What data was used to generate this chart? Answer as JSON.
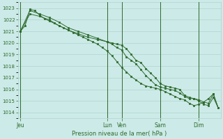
{
  "background_color": "#cceae7",
  "grid_color": "#b0d4d0",
  "line_color": "#2d6a2d",
  "marker_color": "#2d6a2d",
  "xlabel": "Pression niveau de la mer( hPa )",
  "ylim": [
    1013.5,
    1023.5
  ],
  "yticks": [
    1014,
    1015,
    1016,
    1017,
    1018,
    1019,
    1020,
    1021,
    1022,
    1023
  ],
  "x_day_labels": [
    "Jeu",
    "Lun",
    "Ven",
    "Sam",
    "Dim"
  ],
  "x_day_positions": [
    0,
    18,
    21,
    29,
    37
  ],
  "xlim": [
    -0.5,
    41.5
  ],
  "series1_x": [
    0,
    2,
    4,
    6,
    8,
    10,
    12,
    14,
    16,
    18,
    19,
    20,
    21,
    22,
    23,
    24,
    25,
    26,
    27,
    28,
    29,
    30,
    31,
    32,
    33,
    34,
    35,
    36,
    37,
    38,
    39,
    40,
    41
  ],
  "series1_y": [
    1021.0,
    1022.8,
    1022.5,
    1022.2,
    1021.8,
    1021.3,
    1021.0,
    1020.7,
    1020.4,
    1020.1,
    1020.0,
    1019.9,
    1019.8,
    1019.5,
    1019.0,
    1018.5,
    1018.3,
    1017.8,
    1017.4,
    1017.0,
    1016.5,
    1016.3,
    1016.2,
    1016.1,
    1016.0,
    1015.5,
    1015.3,
    1015.2,
    1015.1,
    1014.9,
    1014.8,
    1015.6,
    1014.4
  ],
  "series2_x": [
    0,
    2,
    4,
    6,
    8,
    10,
    12,
    14,
    16,
    18,
    19,
    20,
    21,
    22,
    23,
    24,
    25,
    26,
    27,
    28,
    29,
    30,
    31,
    32,
    33,
    34,
    35,
    36,
    37,
    38,
    39,
    40,
    41
  ],
  "series2_y": [
    1021.0,
    1022.5,
    1022.3,
    1022.0,
    1021.5,
    1021.1,
    1020.8,
    1020.5,
    1020.3,
    1020.1,
    1019.9,
    1019.6,
    1019.4,
    1018.8,
    1018.5,
    1018.2,
    1017.7,
    1017.2,
    1016.8,
    1016.4,
    1016.2,
    1016.1,
    1016.0,
    1015.9,
    1015.7,
    1015.4,
    1015.2,
    1015.2,
    1015.0,
    1014.7,
    1014.6,
    1015.3,
    1014.4
  ],
  "series3_x": [
    0,
    1,
    2,
    3,
    4,
    5,
    6,
    7,
    8,
    9,
    10,
    11,
    12,
    13,
    14,
    15,
    16,
    17,
    18,
    19,
    20,
    21,
    22,
    23,
    24,
    25,
    26,
    27,
    28,
    29,
    30,
    31,
    32,
    33,
    34,
    35,
    36,
    37,
    38,
    39,
    40,
    41
  ],
  "series3_y": [
    1021.0,
    1021.5,
    1022.9,
    1022.8,
    1022.4,
    1022.1,
    1021.9,
    1021.7,
    1021.5,
    1021.3,
    1021.1,
    1020.9,
    1020.7,
    1020.5,
    1020.3,
    1020.1,
    1019.9,
    1019.6,
    1019.3,
    1018.9,
    1018.4,
    1017.9,
    1017.5,
    1017.1,
    1016.8,
    1016.5,
    1016.3,
    1016.2,
    1016.1,
    1016.0,
    1015.8,
    1015.6,
    1015.4,
    1015.2,
    1015.1,
    1014.8,
    1014.6,
    1014.7,
    1014.9,
    1015.2,
    1015.6,
    1014.4
  ]
}
